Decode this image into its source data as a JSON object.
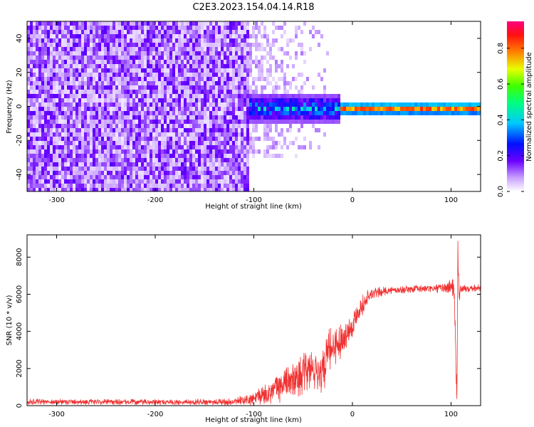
{
  "title": "C2E3.2023.154.04.14.R18",
  "colors": {
    "snr_line": "#f03232",
    "axis": "#000000",
    "noise_purple": "#7b2cff",
    "noise_light": "#d6b8ff"
  },
  "chart_data": [
    {
      "type": "heatmap",
      "title": "",
      "xlabel": "Height of straight line (km)",
      "ylabel": "Frequency (Hz)",
      "xlim": [
        -330,
        130
      ],
      "ylim": [
        -50,
        50
      ],
      "xticks": [
        -300,
        -200,
        -100,
        0,
        100
      ],
      "yticks": [
        -40,
        -20,
        0,
        20,
        40
      ],
      "xtick_labels": [
        "-300",
        "-200",
        "-100",
        "0",
        "100"
      ],
      "ytick_labels": [
        "-40",
        "-20",
        "0",
        "20",
        "40"
      ],
      "colorbar": {
        "label": "Normalized spectral amplitude",
        "range": [
          0,
          0.95
        ],
        "ticks": [
          0.0,
          0.2,
          0.4,
          0.6,
          0.8
        ],
        "tick_labels": [
          "0.0",
          "0.2",
          "0.4",
          "0.6",
          "0.8"
        ],
        "colormap": "rainbow (white-purple-blue-cyan-green-yellow-red-magenta)"
      },
      "regions": [
        {
          "description": "broadband noise",
          "x_range": [
            -330,
            -105
          ],
          "y_range": [
            -50,
            50
          ],
          "amplitude": 0.1
        },
        {
          "description": "noise fading",
          "x_range": [
            -105,
            -20
          ],
          "y_range": [
            -30,
            50
          ],
          "amplitude": 0.05
        },
        {
          "description": "emerging signal",
          "x_range": [
            -105,
            -15
          ],
          "y_range": [
            -8,
            8
          ],
          "amplitude": 0.3
        },
        {
          "description": "strong carrier near 0 Hz",
          "x_range": [
            -15,
            130
          ],
          "y_range": [
            -1,
            1
          ],
          "amplitude": 0.9
        },
        {
          "description": "carrier halo",
          "x_range": [
            -15,
            130
          ],
          "y_range": [
            -4,
            4
          ],
          "amplitude": 0.55
        }
      ],
      "grid": false
    },
    {
      "type": "line",
      "title": "",
      "xlabel": "Height of straight line (km)",
      "ylabel": "SNR (10 * v/v)",
      "xlim": [
        -330,
        130
      ],
      "ylim": [
        0,
        9200
      ],
      "xticks": [
        -300,
        -200,
        -100,
        0,
        100
      ],
      "yticks": [
        0,
        2000,
        4000,
        6000,
        8000
      ],
      "xtick_labels": [
        "-300",
        "-200",
        "-100",
        "0",
        "100"
      ],
      "ytick_labels": [
        "0",
        "2000",
        "4000",
        "6000",
        "8000"
      ],
      "series": [
        {
          "x": [
            -330,
            -300,
            -250,
            -200,
            -150,
            -120,
            -110,
            -100,
            -90,
            -80,
            -70,
            -60,
            -50,
            -40,
            -30,
            -25,
            -20,
            -15,
            -10,
            -5,
            0,
            5,
            10,
            15,
            20,
            25,
            30,
            40,
            50,
            60,
            70,
            80,
            90,
            95,
            100,
            103,
            105,
            106,
            107,
            108,
            110,
            115,
            120,
            130
          ],
          "y": [
            200,
            210,
            200,
            190,
            200,
            200,
            250,
            350,
            600,
            800,
            1100,
            1400,
            1700,
            2000,
            1800,
            2800,
            3200,
            3300,
            3600,
            4000,
            4300,
            5000,
            5400,
            5800,
            6000,
            6100,
            6150,
            6200,
            6250,
            6280,
            6300,
            6300,
            6320,
            6350,
            6400,
            6500,
            2500,
            300,
            8600,
            6000,
            6300,
            6300,
            6350,
            6350
          ],
          "noise_amplitude": [
            150,
            160,
            150,
            150,
            160,
            200,
            300,
            400,
            600,
            700,
            900,
            1000,
            1100,
            1200,
            1300,
            1300,
            1100,
            1000,
            900,
            800,
            700,
            600,
            550,
            450,
            350,
            300,
            250,
            200,
            200,
            200,
            200,
            200,
            250,
            350,
            500,
            700,
            1500,
            500,
            700,
            600,
            300,
            200,
            200,
            200
          ]
        }
      ],
      "grid": false
    }
  ]
}
